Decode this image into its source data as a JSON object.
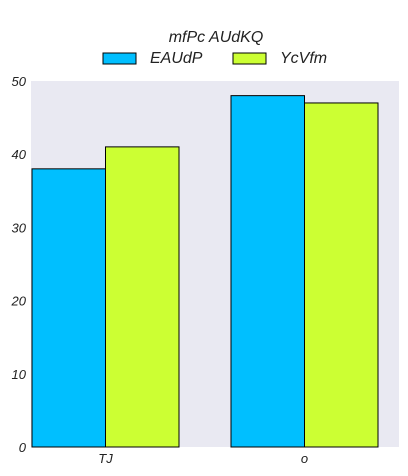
{
  "chart_data": {
    "type": "bar",
    "title": "",
    "categories": [
      "TJ",
      "o"
    ],
    "series": [
      {
        "name": "EAUdP",
        "values": [
          38,
          48
        ],
        "color": "#00bfff"
      },
      {
        "name": "YcVfm",
        "values": [
          41,
          47
        ],
        "color": "#ccff33"
      }
    ],
    "xlabel": "",
    "ylabel": "",
    "ylim": [
      0,
      50
    ],
    "yticks": [
      0,
      10,
      20,
      30,
      40,
      50
    ],
    "grid": false,
    "legend_title": "mfPc AUdKQ",
    "legend_position": "top-center",
    "plot_background": "#e9e9f2"
  }
}
